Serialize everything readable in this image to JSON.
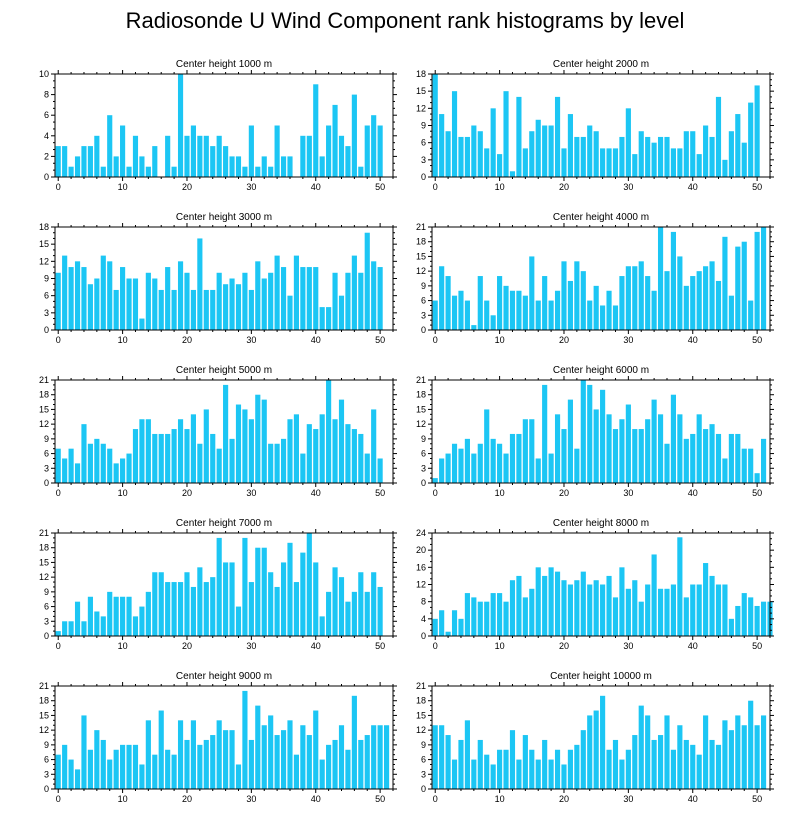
{
  "title": "Radiosonde U Wind Component rank histograms by level",
  "colors": {
    "bar": "#1cc6f4",
    "axis": "#000000"
  },
  "chart_data": [
    {
      "type": "bar",
      "title": "Center height 1000 m",
      "ylim": [
        0,
        10
      ],
      "yticks": [
        0,
        2,
        4,
        6,
        8,
        10
      ],
      "xticks": [
        0,
        10,
        20,
        30,
        40,
        50
      ],
      "values": [
        3,
        3,
        1,
        2,
        3,
        3,
        4,
        1,
        6,
        2,
        5,
        1,
        4,
        2,
        1,
        3,
        0,
        4,
        1,
        10,
        4,
        5,
        4,
        4,
        3,
        4,
        3,
        2,
        2,
        1,
        5,
        1,
        2,
        1,
        5,
        2,
        2,
        0,
        4,
        4,
        9,
        2,
        5,
        7,
        4,
        3,
        8,
        1,
        5,
        6,
        5
      ]
    },
    {
      "type": "bar",
      "title": "Center height 2000 m",
      "ylim": [
        0,
        18
      ],
      "yticks": [
        0,
        3,
        6,
        9,
        12,
        15,
        18
      ],
      "xticks": [
        0,
        10,
        20,
        30,
        40,
        50
      ],
      "values": [
        18,
        11,
        8,
        15,
        7,
        7,
        9,
        8,
        5,
        12,
        4,
        15,
        1,
        14,
        5,
        8,
        10,
        9,
        9,
        14,
        5,
        11,
        7,
        7,
        9,
        8,
        5,
        5,
        5,
        7,
        12,
        4,
        8,
        7,
        6,
        7,
        7,
        5,
        5,
        8,
        8,
        4,
        9,
        7,
        14,
        3,
        8,
        11,
        6,
        13,
        16
      ]
    },
    {
      "type": "bar",
      "title": "Center height 3000 m",
      "ylim": [
        0,
        18
      ],
      "yticks": [
        0,
        3,
        6,
        9,
        12,
        15,
        18
      ],
      "xticks": [
        0,
        10,
        20,
        30,
        40,
        50
      ],
      "values": [
        10,
        13,
        11,
        12,
        11,
        8,
        9,
        13,
        12,
        7,
        11,
        9,
        9,
        2,
        10,
        9,
        7,
        11,
        7,
        12,
        10,
        7,
        16,
        7,
        7,
        10,
        8,
        9,
        8,
        10,
        7,
        12,
        9,
        10,
        13,
        11,
        6,
        13,
        11,
        11,
        11,
        4,
        4,
        10,
        6,
        10,
        13,
        10,
        17,
        12,
        11
      ]
    },
    {
      "type": "bar",
      "title": "Center height 4000 m",
      "ylim": [
        0,
        21
      ],
      "yticks": [
        0,
        3,
        6,
        9,
        12,
        15,
        18,
        21
      ],
      "xticks": [
        0,
        10,
        20,
        30,
        40,
        50
      ],
      "values": [
        6,
        13,
        11,
        7,
        8,
        6,
        1,
        11,
        6,
        3,
        11,
        9,
        8,
        8,
        7,
        15,
        6,
        11,
        6,
        8,
        14,
        10,
        14,
        12,
        6,
        9,
        5,
        8,
        5,
        11,
        13,
        13,
        14,
        11,
        8,
        21,
        12,
        20,
        15,
        9,
        11,
        12,
        13,
        14,
        10,
        19,
        7,
        17,
        18,
        6,
        20,
        21
      ]
    },
    {
      "type": "bar",
      "title": "Center height 5000 m",
      "ylim": [
        0,
        21
      ],
      "yticks": [
        0,
        3,
        6,
        9,
        12,
        15,
        18,
        21
      ],
      "xticks": [
        0,
        10,
        20,
        30,
        40,
        50
      ],
      "values": [
        7,
        5,
        7,
        4,
        12,
        8,
        9,
        8,
        7,
        4,
        5,
        6,
        11,
        13,
        13,
        10,
        10,
        10,
        11,
        13,
        11,
        14,
        8,
        15,
        10,
        7,
        20,
        9,
        16,
        15,
        13,
        18,
        17,
        8,
        8,
        9,
        13,
        14,
        6,
        12,
        11,
        14,
        21,
        13,
        17,
        12,
        11,
        10,
        6,
        15,
        5
      ]
    },
    {
      "type": "bar",
      "title": "Center height 6000 m",
      "ylim": [
        0,
        21
      ],
      "yticks": [
        0,
        3,
        6,
        9,
        12,
        15,
        18,
        21
      ],
      "xticks": [
        0,
        10,
        20,
        30,
        40,
        50
      ],
      "values": [
        1,
        5,
        6,
        8,
        7,
        9,
        6,
        8,
        15,
        9,
        8,
        6,
        10,
        10,
        13,
        13,
        5,
        20,
        6,
        14,
        11,
        17,
        7,
        21,
        20,
        15,
        19,
        14,
        11,
        13,
        16,
        11,
        11,
        13,
        17,
        14,
        8,
        18,
        14,
        9,
        10,
        14,
        11,
        12,
        10,
        5,
        10,
        10,
        7,
        7,
        2,
        9
      ]
    },
    {
      "type": "bar",
      "title": "Center height 7000 m",
      "ylim": [
        0,
        21
      ],
      "yticks": [
        0,
        3,
        6,
        9,
        12,
        15,
        18,
        21
      ],
      "xticks": [
        0,
        10,
        20,
        30,
        40,
        50
      ],
      "values": [
        1,
        3,
        3,
        7,
        3,
        8,
        5,
        4,
        9,
        8,
        8,
        8,
        4,
        6,
        9,
        13,
        13,
        11,
        11,
        11,
        13,
        10,
        14,
        11,
        12,
        20,
        15,
        15,
        6,
        20,
        11,
        18,
        18,
        13,
        10,
        15,
        19,
        11,
        17,
        21,
        15,
        4,
        9,
        14,
        12,
        7,
        9,
        13,
        9,
        13,
        10
      ]
    },
    {
      "type": "bar",
      "title": "Center height 8000 m",
      "ylim": [
        0,
        24
      ],
      "yticks": [
        0,
        4,
        8,
        12,
        16,
        20,
        24
      ],
      "xticks": [
        0,
        10,
        20,
        30,
        40,
        50
      ],
      "values": [
        4,
        6,
        1,
        6,
        4,
        10,
        9,
        8,
        8,
        10,
        10,
        8,
        13,
        14,
        9,
        11,
        16,
        14,
        16,
        15,
        13,
        12,
        13,
        15,
        12,
        13,
        12,
        14,
        9,
        16,
        11,
        13,
        8,
        12,
        19,
        11,
        11,
        12,
        23,
        9,
        12,
        12,
        17,
        14,
        12,
        12,
        4,
        7,
        10,
        9,
        7,
        8,
        8
      ]
    },
    {
      "type": "bar",
      "title": "Center height 9000 m",
      "ylim": [
        0,
        21
      ],
      "yticks": [
        0,
        3,
        6,
        9,
        12,
        15,
        18,
        21
      ],
      "xticks": [
        0,
        10,
        20,
        30,
        40,
        50
      ],
      "values": [
        7,
        9,
        6,
        4,
        15,
        8,
        12,
        10,
        6,
        8,
        9,
        9,
        9,
        5,
        14,
        7,
        16,
        8,
        7,
        14,
        10,
        14,
        9,
        10,
        11,
        14,
        12,
        12,
        5,
        20,
        10,
        17,
        13,
        15,
        11,
        12,
        14,
        7,
        13,
        11,
        16,
        6,
        9,
        10,
        13,
        8,
        19,
        10,
        11,
        13,
        13,
        13
      ]
    },
    {
      "type": "bar",
      "title": "Center height 10000 m",
      "ylim": [
        0,
        21
      ],
      "yticks": [
        0,
        3,
        6,
        9,
        12,
        15,
        18,
        21
      ],
      "xticks": [
        0,
        10,
        20,
        30,
        40,
        50
      ],
      "values": [
        13,
        13,
        11,
        6,
        10,
        14,
        6,
        10,
        7,
        5,
        8,
        8,
        12,
        6,
        11,
        8,
        6,
        10,
        6,
        8,
        5,
        8,
        9,
        12,
        15,
        16,
        19,
        8,
        10,
        6,
        8,
        11,
        17,
        15,
        10,
        11,
        15,
        8,
        13,
        10,
        9,
        7,
        15,
        10,
        9,
        14,
        12,
        15,
        13,
        18,
        13,
        15
      ]
    }
  ]
}
